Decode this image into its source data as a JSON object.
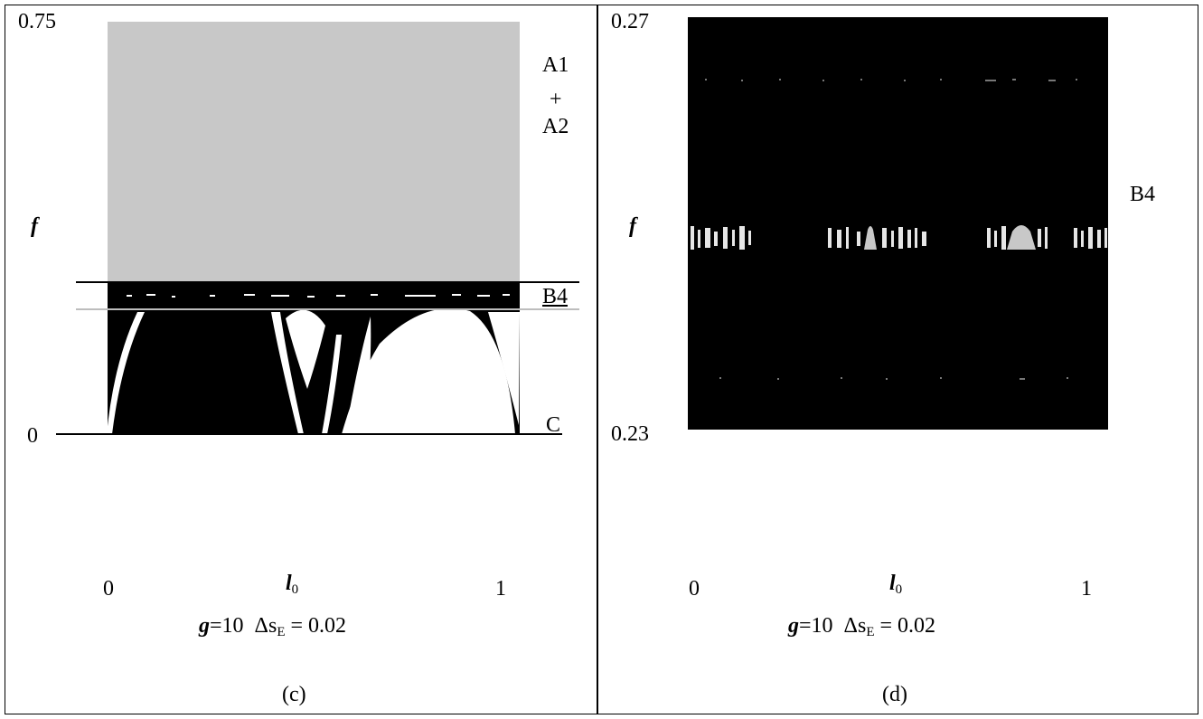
{
  "panel_c": {
    "y_max": "0.75",
    "y_min": "0",
    "y_symbol": "f",
    "x_min": "0",
    "x_max": "1",
    "x_symbol": "l",
    "x_symbol_sub": "0",
    "region_a1": "A1",
    "region_plus": "+",
    "region_a2": "A2",
    "region_b4": "B4",
    "region_c": "C",
    "param_g": "g",
    "param_g_val": "=10",
    "param_ds": "Δs",
    "param_ds_sub": "E",
    "param_ds_val": "= 0.02",
    "caption": "(c)"
  },
  "panel_d": {
    "y_max": "0.27",
    "y_min": "0.23",
    "y_symbol": "f",
    "x_min": "0",
    "x_max": "1",
    "x_symbol": "l",
    "x_symbol_sub": "0",
    "region_b4": "B4",
    "param_g": "g",
    "param_g_val": "=10",
    "param_ds": "Δs",
    "param_ds_sub": "E",
    "param_ds_val": "= 0.02",
    "caption": "(d)"
  },
  "colors": {
    "region_a": "#c8c8c8",
    "chaotic": "#000000",
    "regular": "#ffffff"
  }
}
